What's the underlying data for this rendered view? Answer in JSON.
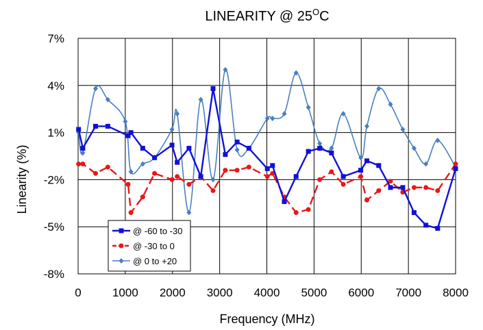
{
  "chart_data": {
    "type": "line",
    "title": "LINEARITY @ 25",
    "title_superscript": "O",
    "title_suffix": "C",
    "xlabel": "Frequency (MHz)",
    "ylabel": "Linearity (%)",
    "xlim": [
      0,
      8000
    ],
    "ylim": [
      -8,
      7
    ],
    "x_ticks": [
      0,
      1000,
      2000,
      3000,
      4000,
      5000,
      6000,
      7000,
      8000
    ],
    "x_tick_labels": [
      "0",
      "1000",
      "2000",
      "3000",
      "4000",
      "5000",
      "6000",
      "7000",
      "8000"
    ],
    "y_ticks": [
      -8,
      -5,
      -2,
      1,
      4,
      7
    ],
    "y_tick_labels": [
      "-8%",
      "-5%",
      "-2%",
      "1%",
      "4%",
      "7%"
    ],
    "grid": true,
    "legend_position": "bottom-left",
    "series": [
      {
        "name": "@ -60 to -30",
        "color": "#1010d8",
        "marker": "square",
        "dashed": false,
        "smooth": false,
        "x": [
          10,
          100,
          370,
          630,
          1060,
          1120,
          1370,
          1620,
          1990,
          2100,
          2350,
          2600,
          2860,
          3120,
          3370,
          3620,
          4010,
          4120,
          4370,
          4620,
          4880,
          5120,
          5370,
          5620,
          5990,
          6120,
          6370,
          6620,
          6880,
          7120,
          7370,
          7620,
          8000
        ],
        "y": [
          1.2,
          0.0,
          1.4,
          1.4,
          0.8,
          1.0,
          0.0,
          -0.6,
          0.2,
          -0.9,
          0.0,
          -1.8,
          3.8,
          -0.4,
          0.4,
          0.0,
          -1.3,
          -1.1,
          -3.4,
          -1.8,
          -0.2,
          0.0,
          -0.3,
          -1.8,
          -1.4,
          -0.8,
          -1.1,
          -2.5,
          -2.5,
          -4.1,
          -4.9,
          -5.1,
          -1.3
        ]
      },
      {
        "name": "@ -30 to 0",
        "color": "#e81818",
        "marker": "circle",
        "dashed": true,
        "smooth": false,
        "x": [
          10,
          100,
          370,
          630,
          1060,
          1120,
          1370,
          1620,
          1990,
          2100,
          2350,
          2600,
          2860,
          3120,
          3370,
          3620,
          4010,
          4120,
          4370,
          4620,
          4880,
          5120,
          5370,
          5620,
          5990,
          6120,
          6370,
          6620,
          6880,
          7120,
          7370,
          7620,
          8000
        ],
        "y": [
          -1.0,
          -1.0,
          -1.6,
          -1.2,
          -2.3,
          -4.1,
          -3.1,
          -1.6,
          -2.0,
          -1.8,
          -2.3,
          -1.8,
          -2.7,
          -1.4,
          -1.4,
          -1.2,
          -1.8,
          -1.6,
          -3.1,
          -4.1,
          -3.9,
          -2.0,
          -1.5,
          -2.3,
          -1.8,
          -3.3,
          -2.7,
          -2.1,
          -2.8,
          -2.5,
          -2.5,
          -2.7,
          -1.0
        ]
      },
      {
        "name": "@ 0 to +20",
        "color": "#4a7fc0",
        "marker": "diamond",
        "dashed": false,
        "smooth": true,
        "x": [
          10,
          100,
          370,
          630,
          1000,
          1120,
          1370,
          1620,
          1990,
          2100,
          2350,
          2600,
          2860,
          3120,
          3370,
          3620,
          4010,
          4120,
          4370,
          4620,
          4880,
          5120,
          5370,
          5620,
          5990,
          6120,
          6370,
          6620,
          6880,
          7120,
          7370,
          7620,
          8000
        ],
        "y": [
          1.0,
          -0.3,
          3.8,
          3.1,
          1.7,
          -1.5,
          -1.0,
          -0.6,
          1.2,
          2.2,
          -4.1,
          3.1,
          -2.0,
          5.0,
          -0.1,
          0.0,
          1.9,
          1.9,
          2.2,
          4.8,
          2.6,
          0.3,
          0.0,
          2.2,
          -0.6,
          1.4,
          3.8,
          2.8,
          1.2,
          0.0,
          -1.0,
          0.5,
          -1.2
        ]
      }
    ]
  }
}
